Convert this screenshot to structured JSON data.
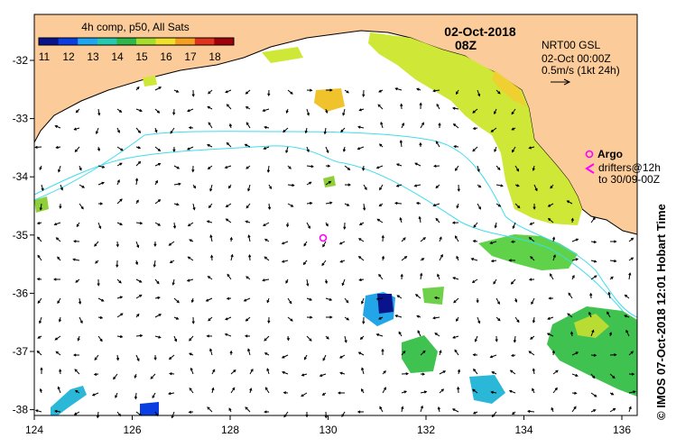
{
  "colorbar": {
    "title": "4h comp, p50, All Sats",
    "ticks": [
      "11",
      "12",
      "13",
      "14",
      "15",
      "16",
      "17",
      "18"
    ],
    "colors": [
      "#08138c",
      "#0a3ee0",
      "#1fa6f0",
      "#26c9b0",
      "#2fb84a",
      "#a6de2c",
      "#f2e12b",
      "#f5a020",
      "#e0321c",
      "#a0000a"
    ]
  },
  "header": {
    "date": "02-Oct-2018",
    "time": "08Z"
  },
  "product": {
    "name": "NRT00 GSL",
    "time": "02-Oct 00:00Z",
    "scale": "0.5m/s (1kt 24h)"
  },
  "legend": {
    "argo_label": "Argo",
    "drifters_line1": "drifters@12h",
    "drifters_line2": "to 30/09-00Z",
    "argo_color": "#ff00ff"
  },
  "axes": {
    "x_ticks": [
      "124",
      "126",
      "128",
      "130",
      "132",
      "134",
      "136"
    ],
    "y_ticks": [
      "-32",
      "-33",
      "-34",
      "-35",
      "-36",
      "-37",
      "-38"
    ]
  },
  "credit": "© IMOS 07-Oct-2018 12:01 Hobart Time",
  "colors": {
    "land": "#fbcb99",
    "isobath": "#3fdcec",
    "warm_water": "#cfe838",
    "cool_water": "#5fd24a",
    "cold_water": "#22a6e8"
  }
}
